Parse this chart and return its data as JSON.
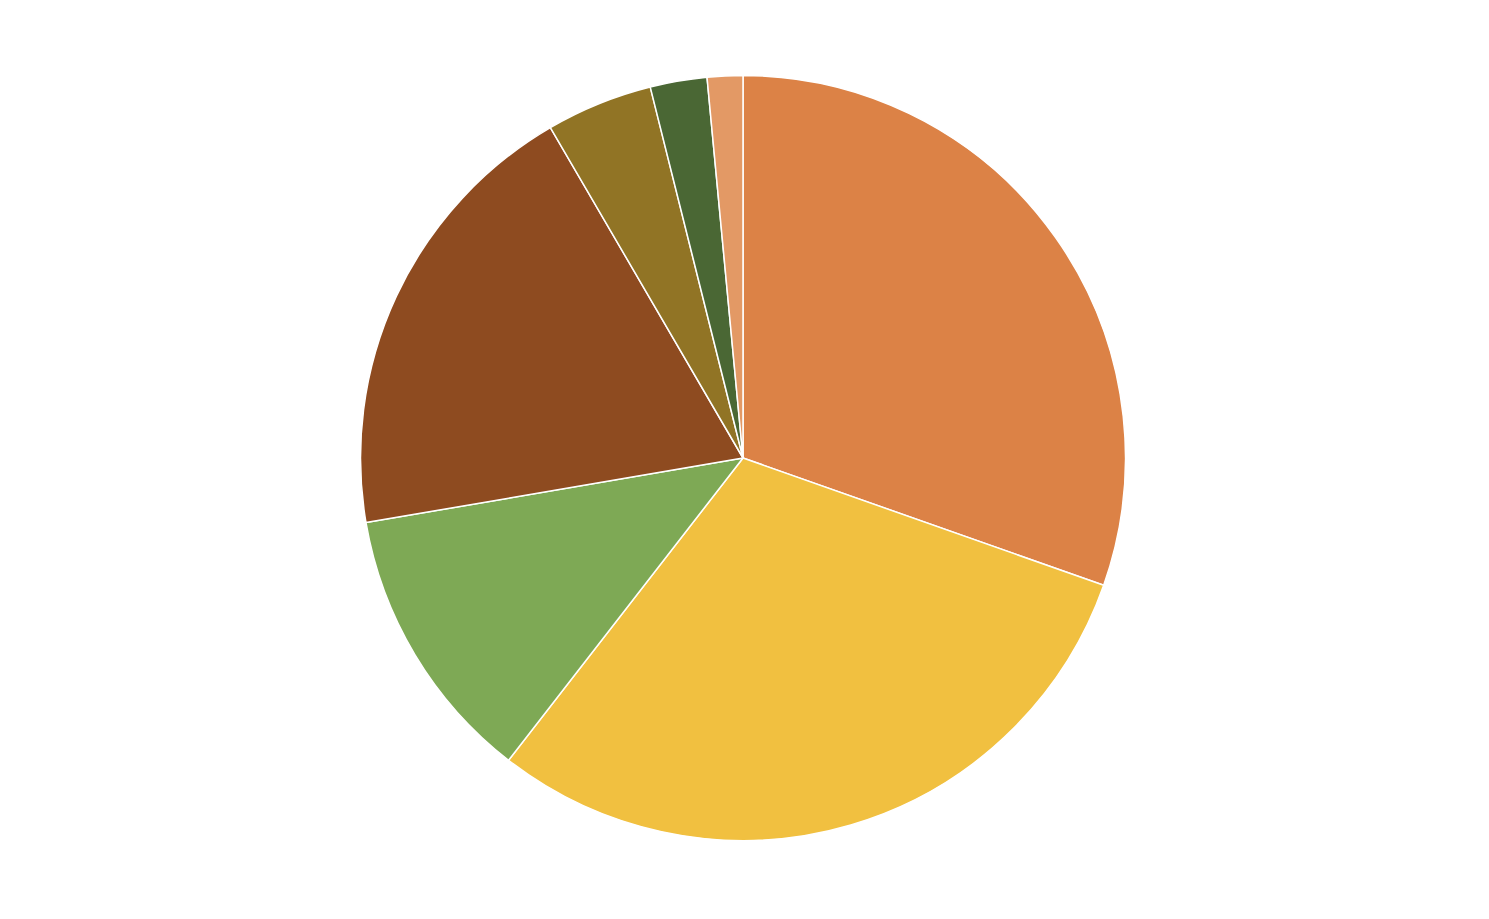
{
  "chart_data": {
    "type": "pie",
    "categories": [
      null,
      null,
      null,
      null,
      null,
      null,
      null
    ],
    "values": [
      30.4,
      30.1,
      11.8,
      19.3,
      4.5,
      2.4,
      1.5
    ],
    "colors": [
      "#dc8246",
      "#f1c040",
      "#7ea955",
      "#8e4b20",
      "#917425",
      "#4a6734",
      "#e39965"
    ]
  }
}
